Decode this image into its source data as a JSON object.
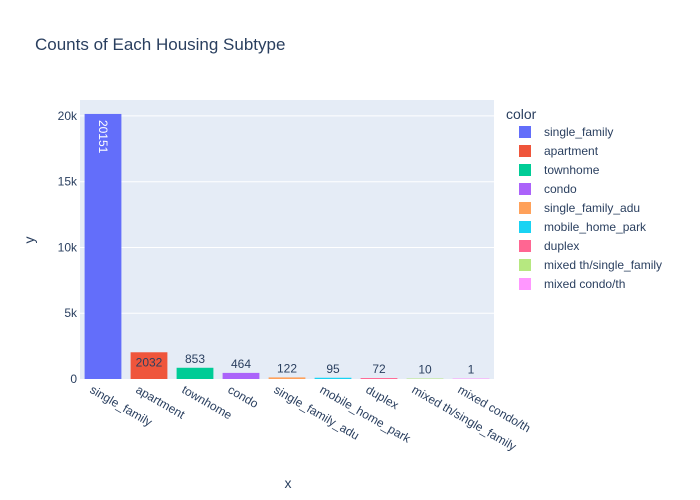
{
  "chart_data": {
    "type": "bar",
    "title": "Counts of Each Housing Subtype",
    "xlabel": "x",
    "ylabel": "y",
    "ylim": [
      0,
      21211
    ],
    "yticks": [
      {
        "value": 0,
        "label": "0"
      },
      {
        "value": 5000,
        "label": "5k"
      },
      {
        "value": 10000,
        "label": "10k"
      },
      {
        "value": 15000,
        "label": "15k"
      },
      {
        "value": 20000,
        "label": "20k"
      }
    ],
    "categories": [
      "single_family",
      "apartment",
      "townhome",
      "condo",
      "single_family_adu",
      "mobile_home_park",
      "duplex",
      "mixed th/single_family",
      "mixed condo/th"
    ],
    "values": [
      20151,
      2032,
      853,
      464,
      122,
      95,
      72,
      10,
      1
    ],
    "value_labels": [
      "20151",
      "2032",
      "853",
      "464",
      "122",
      "95",
      "72",
      "10",
      "1"
    ],
    "colors": [
      "#636efa",
      "#EF553B",
      "#00cc96",
      "#ab63fa",
      "#FFA15A",
      "#19d3f3",
      "#FF6692",
      "#B6E880",
      "#FF97FF"
    ],
    "legend": {
      "title": "color",
      "position": "right",
      "entries": [
        "single_family",
        "apartment",
        "townhome",
        "condo",
        "single_family_adu",
        "mobile_home_park",
        "duplex",
        "mixed th/single_family",
        "mixed condo/th"
      ]
    },
    "grid": true,
    "plot_bgcolor": "#E5ECF6",
    "grid_color": "#ffffff",
    "text_color": "#2a3f5f"
  }
}
